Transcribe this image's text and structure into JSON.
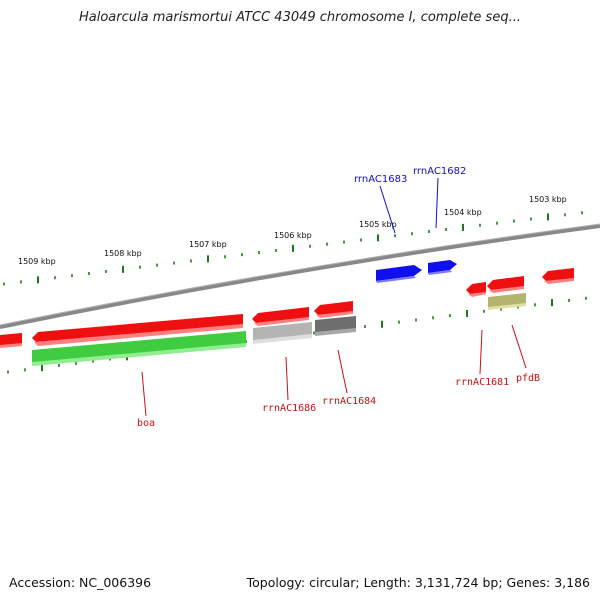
{
  "title": "Haloarcula marismortui ATCC 43049 chromosome I, complete seq...",
  "footer": {
    "accession": "Accession: NC_006396",
    "summary": "Topology: circular; Length: 3,131,724 bp; Genes: 3,186"
  },
  "scale_labels": [
    "1509 kbp",
    "1508 kbp",
    "1507 kbp",
    "1506 kbp",
    "1505 kbp",
    "1504 kbp",
    "1503 kbp"
  ],
  "gene_labels": [
    {
      "name": "rrnAC1683",
      "color": "#1010cc"
    },
    {
      "name": "rrnAC1682",
      "color": "#1010cc"
    },
    {
      "name": "boa",
      "color": "#cc1010"
    },
    {
      "name": "rrnAC1686",
      "color": "#cc1010"
    },
    {
      "name": "rrnAC1684",
      "color": "#cc1010"
    },
    {
      "name": "rrnAC1681",
      "color": "#cc1010"
    },
    {
      "name": "pfdB",
      "color": "#cc1010"
    }
  ],
  "colors": {
    "backbone": "#888888",
    "tick": "#1a7a1a",
    "forward_cds": "#1010ee",
    "reverse_cds": "#ee1010",
    "reverse_gene": "#40cc40",
    "rna_light": "#b4b4b4",
    "rna_dark": "#6e6e6e",
    "feature_olive": "#b4b470"
  }
}
